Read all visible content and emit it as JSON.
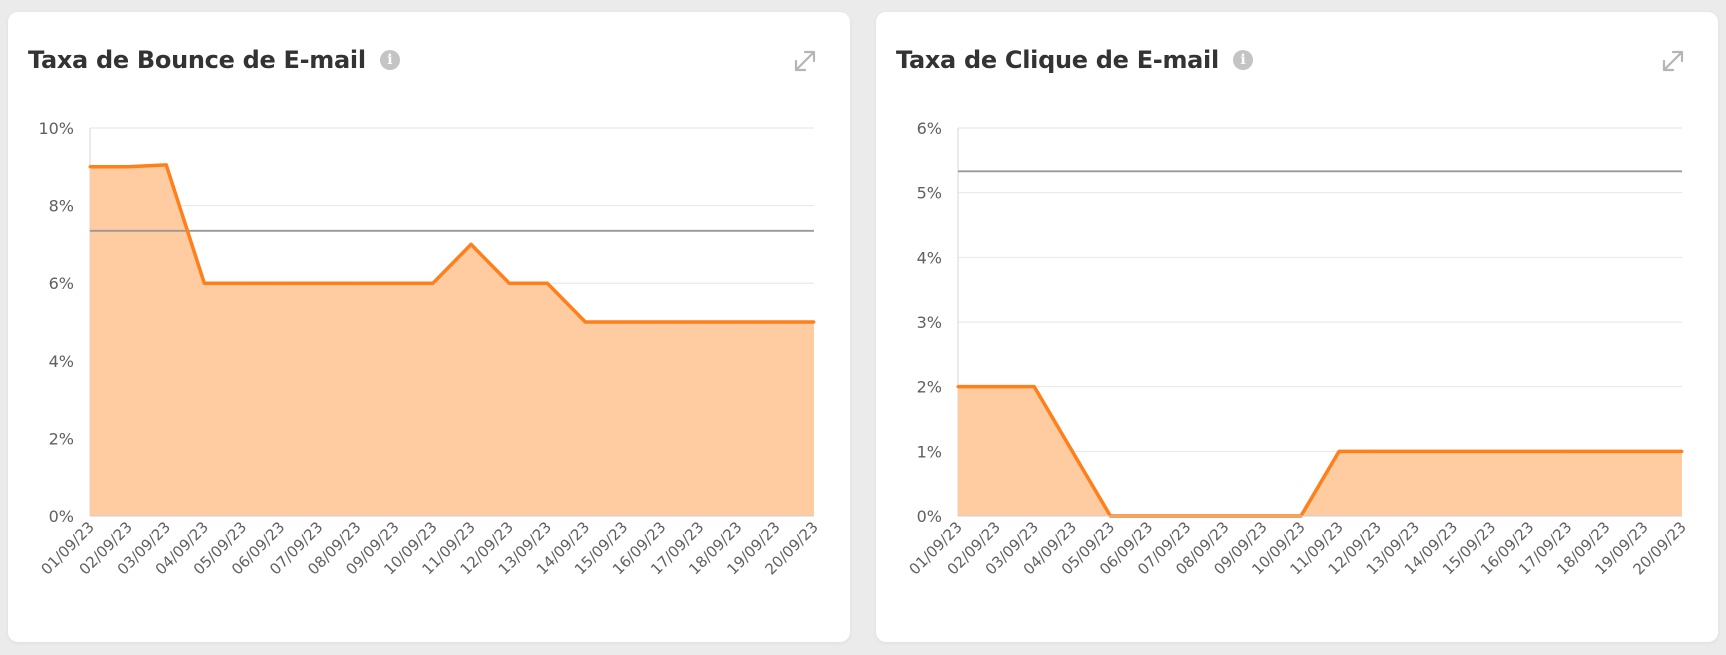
{
  "colors": {
    "series": "#ff7f1a",
    "area": "#ffcba1",
    "average": "#999999",
    "grid": "#e6e6e6"
  },
  "cards": [
    {
      "title": "Taxa de Bounce de E-mail",
      "info_icon": "info-icon",
      "expand_icon": "expand-icon"
    },
    {
      "title": "Taxa de Clique de E-mail",
      "info_icon": "info-icon",
      "expand_icon": "expand-icon"
    }
  ],
  "chart_data": [
    {
      "type": "area",
      "title": "Taxa de Bounce de E-mail",
      "xlabel": "",
      "ylabel": "",
      "x": [
        "01/09/23",
        "02/09/23",
        "03/09/23",
        "04/09/23",
        "05/09/23",
        "06/09/23",
        "07/09/23",
        "08/09/23",
        "09/09/23",
        "10/09/23",
        "11/09/23",
        "12/09/23",
        "13/09/23",
        "14/09/23",
        "15/09/23",
        "16/09/23",
        "17/09/23",
        "18/09/23",
        "19/09/23",
        "20/09/23"
      ],
      "series": [
        {
          "values": [
            9,
            9,
            9.05,
            6,
            6,
            6,
            6,
            6,
            6,
            6,
            7,
            6,
            6,
            5,
            5,
            5,
            5,
            5,
            5,
            5
          ]
        }
      ],
      "average_line": 7.35,
      "ylim": [
        0,
        10
      ],
      "yticks": [
        0,
        2,
        4,
        6,
        8,
        10
      ],
      "ytick_labels": [
        "0%",
        "2%",
        "4%",
        "6%",
        "8%",
        "10%"
      ],
      "grid": true,
      "legend": "none"
    },
    {
      "type": "area",
      "title": "Taxa de Clique de E-mail",
      "xlabel": "",
      "ylabel": "",
      "x": [
        "01/09/23",
        "02/09/23",
        "03/09/23",
        "04/09/23",
        "05/09/23",
        "06/09/23",
        "07/09/23",
        "08/09/23",
        "09/09/23",
        "10/09/23",
        "11/09/23",
        "12/09/23",
        "13/09/23",
        "14/09/23",
        "15/09/23",
        "16/09/23",
        "17/09/23",
        "18/09/23",
        "19/09/23",
        "20/09/23"
      ],
      "series": [
        {
          "values": [
            2,
            2,
            2,
            1,
            0,
            0,
            0,
            0,
            0,
            0,
            1,
            1,
            1,
            1,
            1,
            1,
            1,
            1,
            1,
            1
          ]
        }
      ],
      "average_line": 5.33,
      "ylim": [
        0,
        6
      ],
      "yticks": [
        0,
        1,
        2,
        3,
        4,
        5,
        6
      ],
      "ytick_labels": [
        "0%",
        "1%",
        "2%",
        "3%",
        "4%",
        "5%",
        "6%"
      ],
      "grid": true,
      "legend": "none"
    }
  ]
}
